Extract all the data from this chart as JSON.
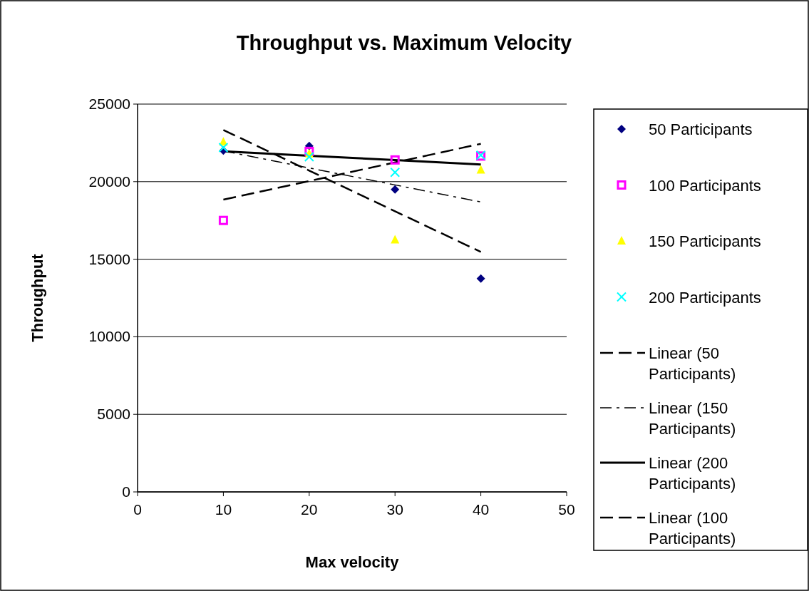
{
  "chart_data": {
    "type": "scatter",
    "title": "Throughput vs. Maximum Velocity",
    "xlabel": "Max velocity",
    "ylabel": "Throughput",
    "x": [
      10,
      20,
      30,
      40
    ],
    "xlim": [
      0,
      50
    ],
    "xticks": [
      0,
      10,
      20,
      30,
      40,
      50
    ],
    "ylim": [
      0,
      25000
    ],
    "yticks": [
      0,
      5000,
      10000,
      15000,
      20000,
      25000
    ],
    "grid": "y",
    "legend": "right",
    "series": [
      {
        "name": "50 Participants",
        "color": "#000080",
        "marker": "diamond",
        "values": [
          22000,
          22300,
          19500,
          13750
        ]
      },
      {
        "name": "100 Participants",
        "color": "#ff00ff",
        "marker": "square",
        "values": [
          17500,
          21950,
          21400,
          21650
        ]
      },
      {
        "name": "150 Participants",
        "color": "#ffff00",
        "marker": "triangle",
        "values": [
          22550,
          21800,
          16250,
          20750
        ]
      },
      {
        "name": "200 Participants",
        "color": "#00ffff",
        "marker": "cross",
        "values": [
          22200,
          21600,
          20600,
          21700
        ]
      },
      {
        "name": "Linear (50 Participants)",
        "type": "line",
        "color": "#000000",
        "line_style": "dashed",
        "values": [
          23330,
          20710,
          18090,
          15470
        ]
      },
      {
        "name": "Linear (150 Participants)",
        "type": "line",
        "color": "#000000",
        "line_style": "dashed",
        "values": [
          21980,
          20880,
          19790,
          18690
        ]
      },
      {
        "name": "Linear (200 Participants)",
        "type": "line",
        "color": "#000000",
        "line_style": "solid",
        "values": [
          21950,
          21670,
          21390,
          21110
        ]
      },
      {
        "name": "Linear (100 Participants)",
        "type": "line",
        "color": "#000000",
        "line_style": "dashed",
        "values": [
          18840,
          20040,
          21240,
          22440
        ]
      }
    ]
  }
}
